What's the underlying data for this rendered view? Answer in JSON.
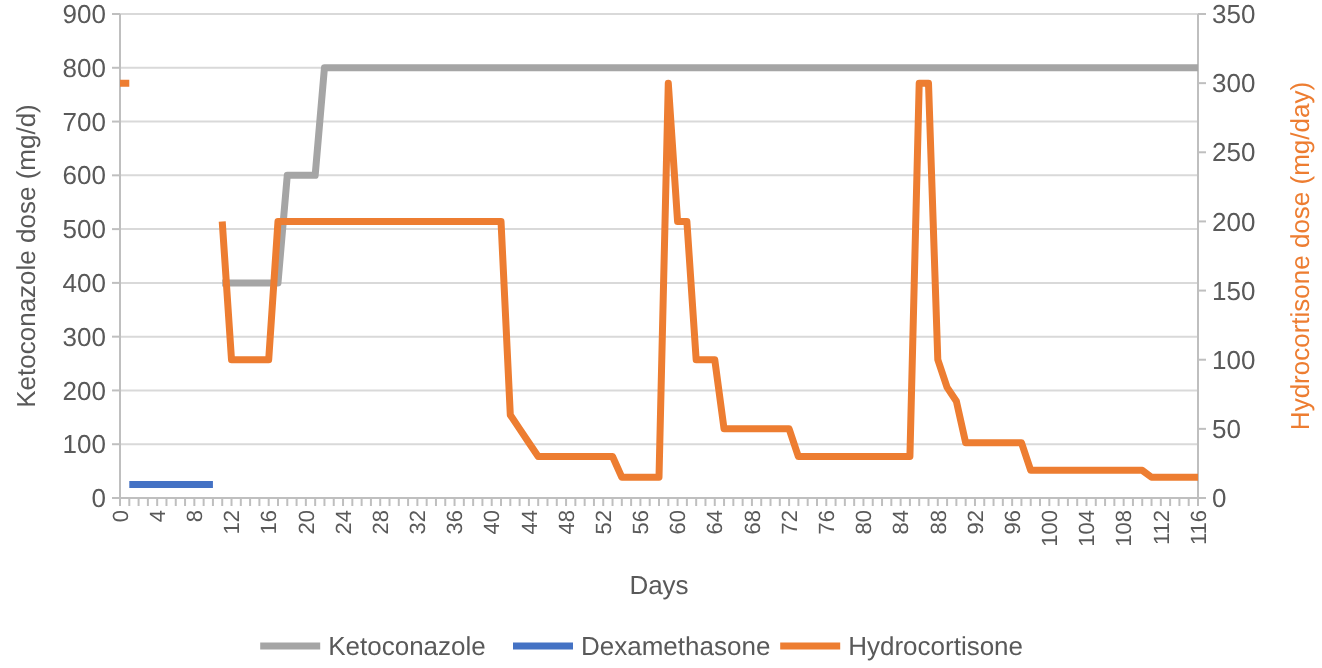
{
  "chart_data": {
    "type": "line",
    "xlabel": "Days",
    "ylabel": "Ketoconazole dose (mg/d)",
    "y2label": "Hydrocortisone dose (mg/day)",
    "categories": [
      "0",
      null,
      null,
      null,
      "4",
      null,
      null,
      null,
      "8",
      null,
      null,
      null,
      "12",
      null,
      null,
      null,
      "16",
      null,
      null,
      null,
      "20",
      null,
      null,
      null,
      "24",
      null,
      null,
      null,
      "28",
      null,
      null,
      null,
      "32",
      null,
      null,
      null,
      "36",
      null,
      null,
      null,
      "40",
      null,
      null,
      null,
      "44",
      null,
      null,
      null,
      "48",
      null,
      null,
      null,
      "52",
      null,
      null,
      null,
      "56",
      null,
      null,
      null,
      "60",
      null,
      null,
      null,
      "64",
      null,
      null,
      null,
      "68",
      null,
      null,
      null,
      "72",
      null,
      null,
      null,
      "76",
      null,
      null,
      null,
      "80",
      null,
      null,
      null,
      "84",
      null,
      null,
      null,
      "88",
      null,
      null,
      null,
      "92",
      null,
      null,
      null,
      "96",
      null,
      null,
      null,
      "100",
      null,
      null,
      null,
      "104",
      null,
      null,
      null,
      "108",
      null,
      null,
      null,
      "112",
      null,
      null,
      null,
      "116"
    ],
    "ylim": [
      0,
      900
    ],
    "yticks": [
      0,
      100,
      200,
      300,
      400,
      500,
      600,
      700,
      800,
      900
    ],
    "y2lim": [
      0,
      350
    ],
    "y2ticks": [
      0,
      50,
      100,
      150,
      200,
      250,
      300,
      350
    ],
    "grid": "y",
    "legend": "bottom",
    "line_style": "solid",
    "series": [
      {
        "name": "Ketoconazole",
        "color": "#a5a5a5",
        "values": [
          null,
          null,
          null,
          null,
          null,
          null,
          null,
          null,
          null,
          null,
          null,
          400,
          400,
          400,
          400,
          400,
          400,
          400,
          600,
          600,
          600,
          600,
          800,
          800,
          800,
          800,
          800,
          800,
          800,
          800,
          800,
          800,
          800,
          800,
          800,
          800,
          800,
          800,
          800,
          800,
          800,
          800,
          800,
          800,
          800,
          800,
          800,
          800,
          800,
          800,
          800,
          800,
          800,
          800,
          800,
          800,
          800,
          800,
          800,
          800,
          800,
          800,
          800,
          800,
          800,
          800,
          800,
          800,
          800,
          800,
          800,
          800,
          800,
          800,
          800,
          800,
          800,
          800,
          800,
          800,
          800,
          800,
          800,
          800,
          800,
          800,
          800,
          800,
          800,
          800,
          800,
          800,
          800,
          800,
          800,
          800,
          800,
          800,
          800,
          800,
          800,
          800,
          800,
          800,
          800,
          800,
          800,
          800,
          800,
          800,
          800,
          800,
          800,
          800,
          800,
          800,
          800
        ]
      },
      {
        "name": "Dexamethasone",
        "color": "#4472c4",
        "values": [
          null,
          25,
          25,
          25,
          25,
          25,
          25,
          25,
          25,
          25,
          25,
          null,
          null,
          null,
          null,
          null,
          null,
          null,
          null,
          null,
          null,
          null,
          null,
          null,
          null,
          null,
          null,
          null,
          null,
          null,
          null,
          null,
          null,
          null,
          null,
          null,
          null,
          null,
          null,
          null,
          null,
          null,
          null,
          null,
          null,
          null,
          null,
          null,
          null,
          null,
          null,
          null,
          null,
          null,
          null,
          null,
          null,
          null,
          null,
          null,
          null,
          null,
          null,
          null,
          null,
          null,
          null,
          null,
          null,
          null,
          null,
          null,
          null,
          null,
          null,
          null,
          null,
          null,
          null,
          null,
          null,
          null,
          null,
          null,
          null,
          null,
          null,
          null,
          null,
          null,
          null,
          null,
          null,
          null,
          null,
          null,
          null,
          null,
          null,
          null,
          null,
          null,
          null,
          null,
          null,
          null,
          null,
          null,
          null,
          null,
          null,
          null,
          null,
          null,
          null,
          null,
          null
        ]
      },
      {
        "name": "Hydrocortisone",
        "color": "#ed7d31",
        "axis": "y2",
        "values": [
          300,
          300,
          null,
          null,
          null,
          null,
          null,
          null,
          null,
          null,
          null,
          200,
          100,
          100,
          100,
          100,
          100,
          200,
          200,
          200,
          200,
          200,
          200,
          200,
          200,
          200,
          200,
          200,
          200,
          200,
          200,
          200,
          200,
          200,
          200,
          200,
          200,
          200,
          200,
          200,
          200,
          200,
          60,
          50,
          40,
          30,
          30,
          30,
          30,
          30,
          30,
          30,
          30,
          30,
          15,
          15,
          15,
          15,
          15,
          300,
          200,
          200,
          100,
          100,
          100,
          50,
          50,
          50,
          50,
          50,
          50,
          50,
          50,
          30,
          30,
          30,
          30,
          30,
          30,
          30,
          30,
          30,
          30,
          30,
          30,
          30,
          300,
          300,
          100,
          80,
          70,
          40,
          40,
          40,
          40,
          40,
          40,
          40,
          20,
          20,
          20,
          20,
          20,
          20,
          20,
          20,
          20,
          20,
          20,
          20,
          20,
          15,
          15,
          15,
          15,
          15,
          15
        ]
      }
    ]
  }
}
